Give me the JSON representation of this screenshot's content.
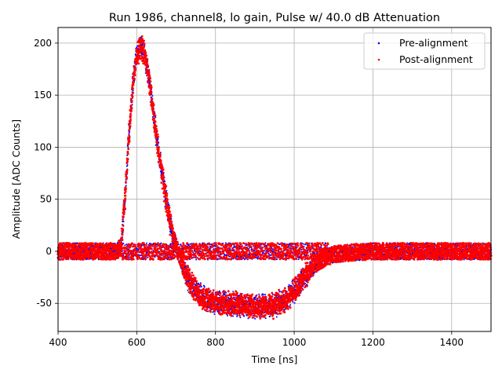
{
  "chart_data": {
    "type": "scatter",
    "title": "Run 1986, channel8, lo gain, Pulse w/ 40.0 dB Attenuation",
    "xlabel": "Time [ns]",
    "ylabel": "Amplitude [ADC Counts]",
    "xlim": [
      400,
      1500
    ],
    "ylim": [
      -77,
      215
    ],
    "xticks": [
      400,
      600,
      800,
      1000,
      1200,
      1400
    ],
    "yticks": [
      -50,
      0,
      50,
      100,
      150,
      200
    ],
    "grid": true,
    "legend_position": "top-right",
    "series": [
      {
        "name": "Pre-alignment",
        "color": "#0000ff",
        "marker": "dot",
        "baseline_band": [
          -8,
          8
        ],
        "x": [
          400,
          450,
          500,
          550,
          560,
          570,
          580,
          590,
          600,
          610,
          620,
          630,
          640,
          650,
          660,
          670,
          680,
          690,
          700,
          710,
          720,
          740,
          760,
          780,
          800,
          850,
          900,
          950,
          980,
          1000,
          1020,
          1040,
          1060,
          1080,
          1100,
          1150,
          1200,
          1300,
          1400,
          1500
        ],
        "y": [
          0,
          0,
          0,
          0,
          5,
          50,
          110,
          160,
          188,
          197,
          190,
          168,
          140,
          110,
          85,
          60,
          38,
          18,
          5,
          -5,
          -18,
          -33,
          -42,
          -46,
          -49,
          -51,
          -53,
          -52,
          -46,
          -38,
          -28,
          -18,
          -11,
          -6,
          -3,
          -1,
          0,
          0,
          0,
          0
        ]
      },
      {
        "name": "Post-alignment",
        "color": "#ff0000",
        "marker": "dot",
        "baseline_band": [
          -8,
          8
        ],
        "x": [
          400,
          450,
          500,
          550,
          560,
          570,
          580,
          590,
          600,
          610,
          620,
          630,
          640,
          650,
          660,
          670,
          680,
          690,
          700,
          710,
          720,
          740,
          760,
          780,
          800,
          850,
          900,
          950,
          980,
          1000,
          1020,
          1040,
          1060,
          1080,
          1100,
          1150,
          1200,
          1300,
          1400,
          1500
        ],
        "y": [
          0,
          0,
          0,
          0,
          5,
          50,
          110,
          160,
          188,
          197,
          190,
          168,
          140,
          110,
          85,
          60,
          38,
          18,
          5,
          -5,
          -18,
          -33,
          -42,
          -46,
          -49,
          -51,
          -53,
          -52,
          -46,
          -38,
          -28,
          -18,
          -11,
          -6,
          -3,
          -1,
          0,
          0,
          0,
          0
        ]
      }
    ]
  }
}
